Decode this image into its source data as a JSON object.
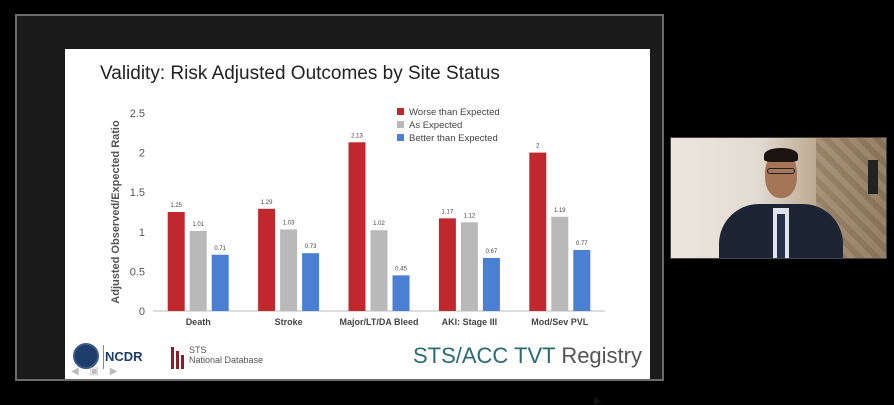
{
  "slide": {
    "title": "Validity: Risk Adjusted Outcomes by Site Status"
  },
  "chart_data": {
    "type": "bar",
    "title": "",
    "xlabel": "",
    "ylabel": "Adjusted Observed/Expected Ratio",
    "ylim": [
      0,
      2.5
    ],
    "yticks": [
      "0",
      "0.5",
      "1",
      "1.5",
      "2",
      "2.5"
    ],
    "categories": [
      "Death",
      "Stroke",
      "Major/LT/DA Bleed",
      "AKI: Stage III",
      "Mod/Sev PVL"
    ],
    "series": [
      {
        "name": "Worse than Expected",
        "color": "#c0282d",
        "values": [
          1.25,
          1.29,
          2.13,
          1.17,
          2
        ],
        "labels": [
          "1.25",
          "1.29",
          "2.13",
          "1.17",
          "2"
        ]
      },
      {
        "name": "As Expected",
        "color": "#b9b9b9",
        "values": [
          1.01,
          1.03,
          1.02,
          1.12,
          1.19
        ],
        "labels": [
          "1.01",
          "1.03",
          "1.02",
          "1.12",
          "1.19"
        ]
      },
      {
        "name": "Better than Expected",
        "color": "#4a7fd4",
        "values": [
          0.71,
          0.73,
          0.45,
          0.67,
          0.77
        ],
        "labels": [
          "0.71",
          "0.73",
          "0.45",
          "0.67",
          "0.77"
        ]
      }
    ],
    "grid": false,
    "legend_position": "top-right"
  },
  "footer": {
    "ncdr_logo": "NCDR",
    "sts_logo_line1": "STS",
    "sts_logo_line2": "National Database",
    "registry_main": "STS/ACC TVT",
    "registry_tail": "Registry"
  },
  "icons": {
    "nav": "slide-navigation-arrows-icon",
    "seal": "ncdr-seal-icon"
  }
}
